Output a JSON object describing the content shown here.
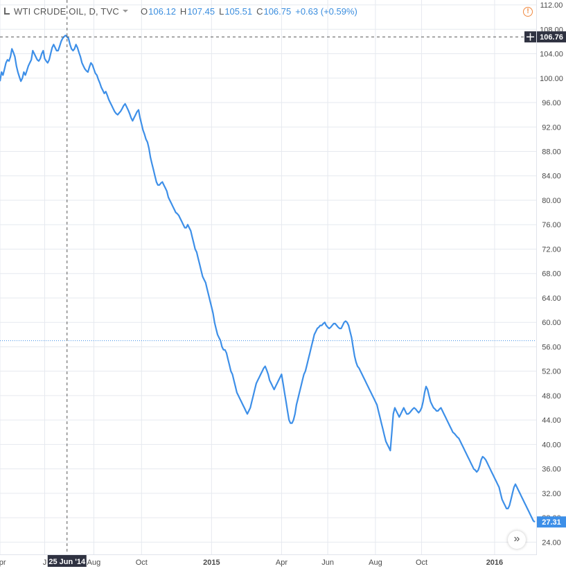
{
  "legend": {
    "symbol": "WTI CRUDE OIL, D, TVC",
    "open_label": "O",
    "open": "106.12",
    "high_label": "H",
    "high": "107.45",
    "low_label": "L",
    "low": "105.51",
    "close_label": "C",
    "close": "106.75",
    "change": "+0.63 (+0.59%)"
  },
  "icons": {
    "warning": "warning-icon",
    "scroll": "scroll-right-icon",
    "crosshair": "crosshair-plus-icon"
  },
  "scroll_button": {
    "label": "»"
  },
  "colors": {
    "line": "#3d8fe8",
    "grid": "#e6e9ef",
    "badge_dark": "#2f3241",
    "badge_blue": "#3d8fe8",
    "warning": "#f0883e"
  },
  "crosshair": {
    "date_label": "25 Jun '14",
    "price_label": "106.76",
    "x_index": 45,
    "price": 106.76
  },
  "last_price_label": "27.31",
  "chart_data": {
    "type": "line",
    "title": "WTI CRUDE OIL, D, TVC",
    "ylim": [
      22.0,
      112.8
    ],
    "y_ticks": [
      "24.00",
      "28.00",
      "32.00",
      "36.00",
      "40.00",
      "44.00",
      "48.00",
      "52.00",
      "56.00",
      "60.00",
      "64.00",
      "68.00",
      "72.00",
      "76.00",
      "80.00",
      "84.00",
      "88.00",
      "92.00",
      "96.00",
      "100.00",
      "104.00",
      "108.00",
      "112.00"
    ],
    "x_ticks": [
      {
        "label": "Apr",
        "i": 0
      },
      {
        "label": "J",
        "i": 30
      },
      {
        "label": "Aug",
        "i": 63
      },
      {
        "label": "Oct",
        "i": 95
      },
      {
        "label": "2015",
        "i": 142
      },
      {
        "label": "Apr",
        "i": 189
      },
      {
        "label": "Jun",
        "i": 220
      },
      {
        "label": "Aug",
        "i": 252
      },
      {
        "label": "Oct",
        "i": 283
      },
      {
        "label": "2016",
        "i": 332
      }
    ],
    "grid": true,
    "reference_line": 57.0,
    "series": [
      {
        "values": [
          99.5,
          101,
          100.5,
          101.5,
          102.5,
          103,
          102.8,
          103.5,
          104.8,
          104.2,
          103.5,
          102,
          101,
          100.2,
          99.5,
          100,
          101,
          100.5,
          101.2,
          102,
          102.5,
          103,
          104.5,
          104,
          103.5,
          103,
          102.8,
          103.2,
          104,
          104.5,
          103.2,
          102.8,
          102.5,
          103,
          104,
          105,
          105.5,
          105,
          104.5,
          104.5,
          105.2,
          106,
          106.5,
          106.8,
          107,
          106.76,
          106.5,
          105.5,
          104.8,
          104.5,
          104.8,
          105.5,
          105,
          104.2,
          103.5,
          102.5,
          102,
          101.5,
          101.2,
          101,
          101.8,
          102.5,
          102.2,
          101.5,
          100.8,
          100.5,
          99.8,
          99.2,
          98.5,
          98,
          97.5,
          97.8,
          97.2,
          96.5,
          96,
          95.5,
          95,
          94.5,
          94.2,
          94,
          94.3,
          94.6,
          95,
          95.5,
          95.8,
          95.3,
          94.8,
          94.2,
          93.5,
          93,
          93.5,
          94,
          94.5,
          94.8,
          93.5,
          92.5,
          91.5,
          90.8,
          90,
          89.5,
          88.5,
          87,
          86,
          85,
          84,
          83,
          82.5,
          82.5,
          82.8,
          83,
          82.5,
          82,
          81.5,
          80.5,
          80,
          79.5,
          79,
          78.5,
          78,
          77.8,
          77.5,
          77,
          76.5,
          76,
          75.5,
          75.5,
          76,
          75.5,
          75,
          74,
          73,
          72,
          71.5,
          70.5,
          69.5,
          68.5,
          67.5,
          67,
          66.5,
          65.5,
          64.5,
          63.5,
          62.5,
          61.5,
          60,
          59,
          58,
          57.5,
          57,
          56,
          55.5,
          55.5,
          55,
          54,
          53,
          52,
          51.5,
          50.5,
          49.5,
          48.5,
          48,
          47.5,
          47,
          46.5,
          46,
          45.5,
          45,
          45.5,
          46,
          47,
          48,
          49,
          50,
          50.5,
          51,
          51.5,
          52,
          52.5,
          52.8,
          52.2,
          51.5,
          50.5,
          50,
          49.5,
          49,
          49.5,
          50,
          50.5,
          51,
          51.5,
          50,
          48.5,
          47,
          45.5,
          44,
          43.5,
          43.5,
          44,
          45,
          46.5,
          47.5,
          48.5,
          49.5,
          50.5,
          51.5,
          52,
          53,
          54,
          55,
          56,
          57,
          58,
          58.5,
          59,
          59.2,
          59.5,
          59.5,
          59.8,
          60,
          59.5,
          59.2,
          59,
          59.2,
          59.5,
          59.8,
          59.8,
          59.5,
          59.2,
          59,
          59,
          59.5,
          60,
          60.2,
          60,
          59.5,
          58.5,
          57.5,
          56,
          54.5,
          53.5,
          52.8,
          52.5,
          52,
          51.5,
          51,
          50.5,
          50,
          49.5,
          49,
          48.5,
          48,
          47.5,
          47,
          46.5,
          45.5,
          44.5,
          43.5,
          42.5,
          41.5,
          40.5,
          40,
          39.5,
          39,
          42,
          45,
          46,
          45.5,
          45,
          44.5,
          45,
          45.5,
          46,
          45.5,
          45,
          45,
          45.2,
          45.5,
          45.8,
          46,
          45.8,
          45.5,
          45.2,
          45.5,
          46,
          47,
          48.5,
          49.5,
          49,
          48,
          47,
          46.5,
          46,
          45.8,
          45.5,
          45.5,
          45.8,
          46,
          45.5,
          45,
          44.5,
          44,
          43.5,
          43,
          42.5,
          42,
          41.8,
          41.5,
          41.2,
          41,
          40.5,
          40,
          39.5,
          39,
          38.5,
          38,
          37.5,
          37,
          36.5,
          36,
          35.8,
          35.5,
          35.8,
          36.5,
          37.5,
          38,
          37.8,
          37.5,
          37,
          36.5,
          36,
          35.5,
          35,
          34.5,
          34,
          33.5,
          33,
          32,
          31,
          30.5,
          30,
          29.5,
          29.5,
          30,
          31,
          32,
          33,
          33.5,
          33,
          32.5,
          32,
          31.5,
          31,
          30.5,
          30,
          29.5,
          29,
          28.5,
          28,
          27.5,
          27.31
        ]
      }
    ]
  }
}
